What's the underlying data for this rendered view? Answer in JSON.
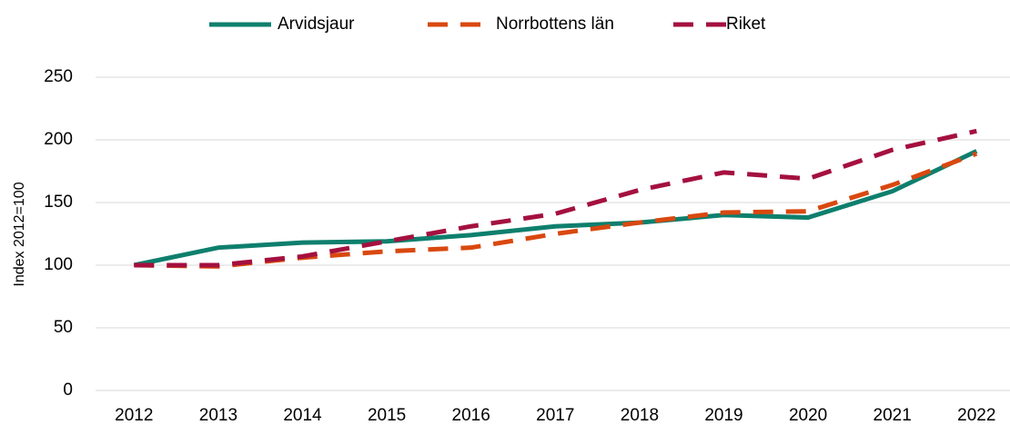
{
  "chart_data": {
    "type": "line",
    "y_label": "Index 2012=100",
    "categories": [
      "2012",
      "2013",
      "2014",
      "2015",
      "2016",
      "2017",
      "2018",
      "2019",
      "2020",
      "2021",
      "2022"
    ],
    "series": [
      {
        "name": "Arvidsjaur",
        "color": "#0e7f6d",
        "dash": "solid",
        "values": [
          100,
          114,
          118,
          119,
          124,
          131,
          134,
          140,
          138,
          159,
          191
        ]
      },
      {
        "name": "Norrbottens län",
        "color": "#d9480f",
        "dash": "dashed",
        "values": [
          100,
          99,
          106,
          111,
          114,
          125,
          134,
          142,
          143,
          164,
          189
        ]
      },
      {
        "name": "Riket",
        "color": "#a4103f",
        "dash": "dashed",
        "values": [
          100,
          100,
          107,
          119,
          131,
          141,
          160,
          174,
          169,
          192,
          207
        ]
      }
    ],
    "ylim": [
      0,
      250
    ],
    "yticks": [
      0,
      50,
      100,
      150,
      200,
      250
    ],
    "grid": true,
    "legend": "top"
  }
}
